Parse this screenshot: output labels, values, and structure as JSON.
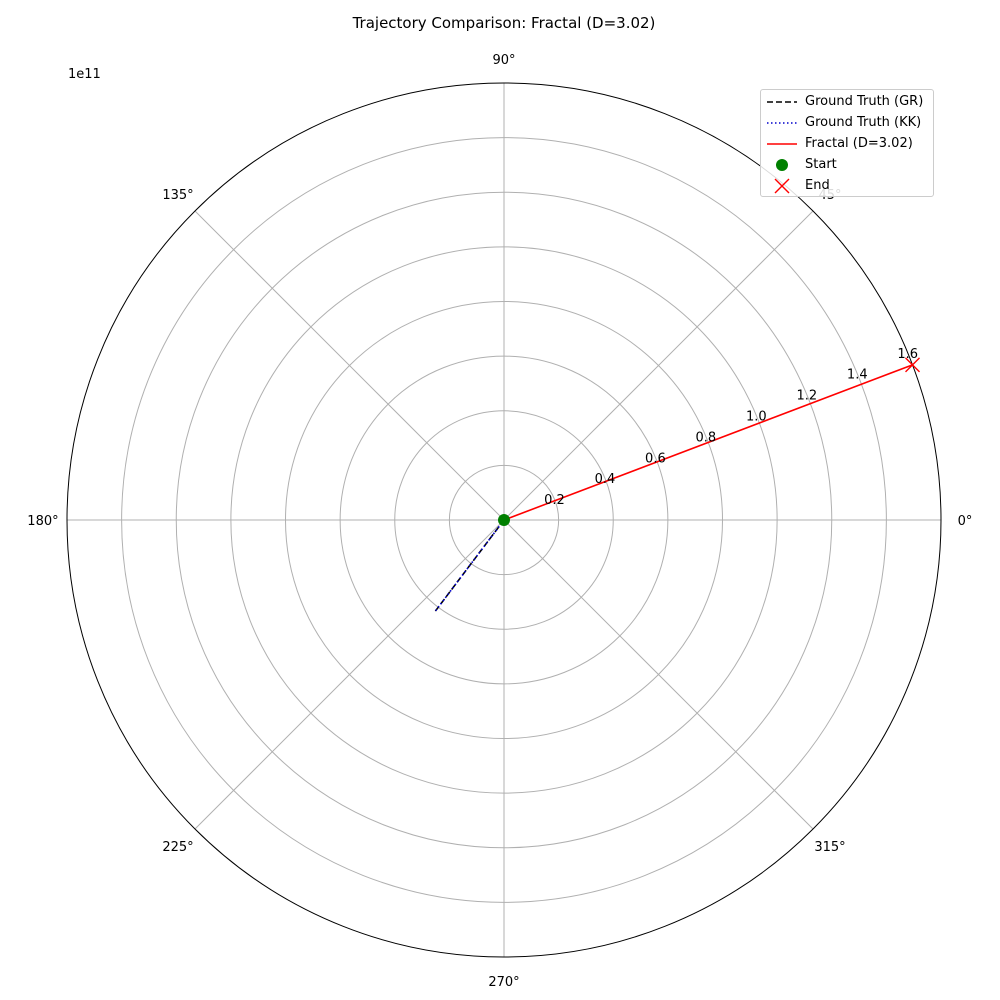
{
  "chart_data": {
    "type": "line",
    "projection": "polar",
    "title": "Trajectory Comparison: Fractal (D=3.02)",
    "radial_offset_label": "1e11",
    "r_ticks": [
      0.2,
      0.4,
      0.6,
      0.8,
      1.0,
      1.2,
      1.4,
      1.6
    ],
    "r_tick_labels": [
      "0.2",
      "0.4",
      "0.6",
      "0.8",
      "1.0",
      "1.2",
      "1.4",
      "1.6"
    ],
    "rlim": [
      0,
      1.6
    ],
    "theta_ticks": [
      0,
      45,
      90,
      135,
      180,
      225,
      270,
      315
    ],
    "theta_tick_labels": [
      "0°",
      "45°",
      "90°",
      "135°",
      "180°",
      "225°",
      "270°",
      "315°"
    ],
    "grid": true,
    "legend_position": "top-right",
    "series": [
      {
        "name": "Ground Truth (GR)",
        "color": "#000000",
        "style": "dashed",
        "theta_deg": [
          225,
          233
        ],
        "r": [
          0.0,
          0.42
        ]
      },
      {
        "name": "Ground Truth (KK)",
        "color": "#0000cc",
        "style": "dotted",
        "theta_deg": [
          225,
          233
        ],
        "r": [
          0.0,
          0.42
        ]
      },
      {
        "name": "Fractal (D=3.02)",
        "color": "#ff0000",
        "style": "solid",
        "theta_deg": [
          20.8,
          20.8
        ],
        "r": [
          0.0,
          1.6
        ]
      }
    ],
    "markers": [
      {
        "name": "Start",
        "color": "#008000",
        "shape": "circle",
        "theta_deg": 0,
        "r": 0.0
      },
      {
        "name": "End",
        "color": "#ff0000",
        "shape": "x",
        "theta_deg": 20.8,
        "r": 1.6
      }
    ]
  }
}
